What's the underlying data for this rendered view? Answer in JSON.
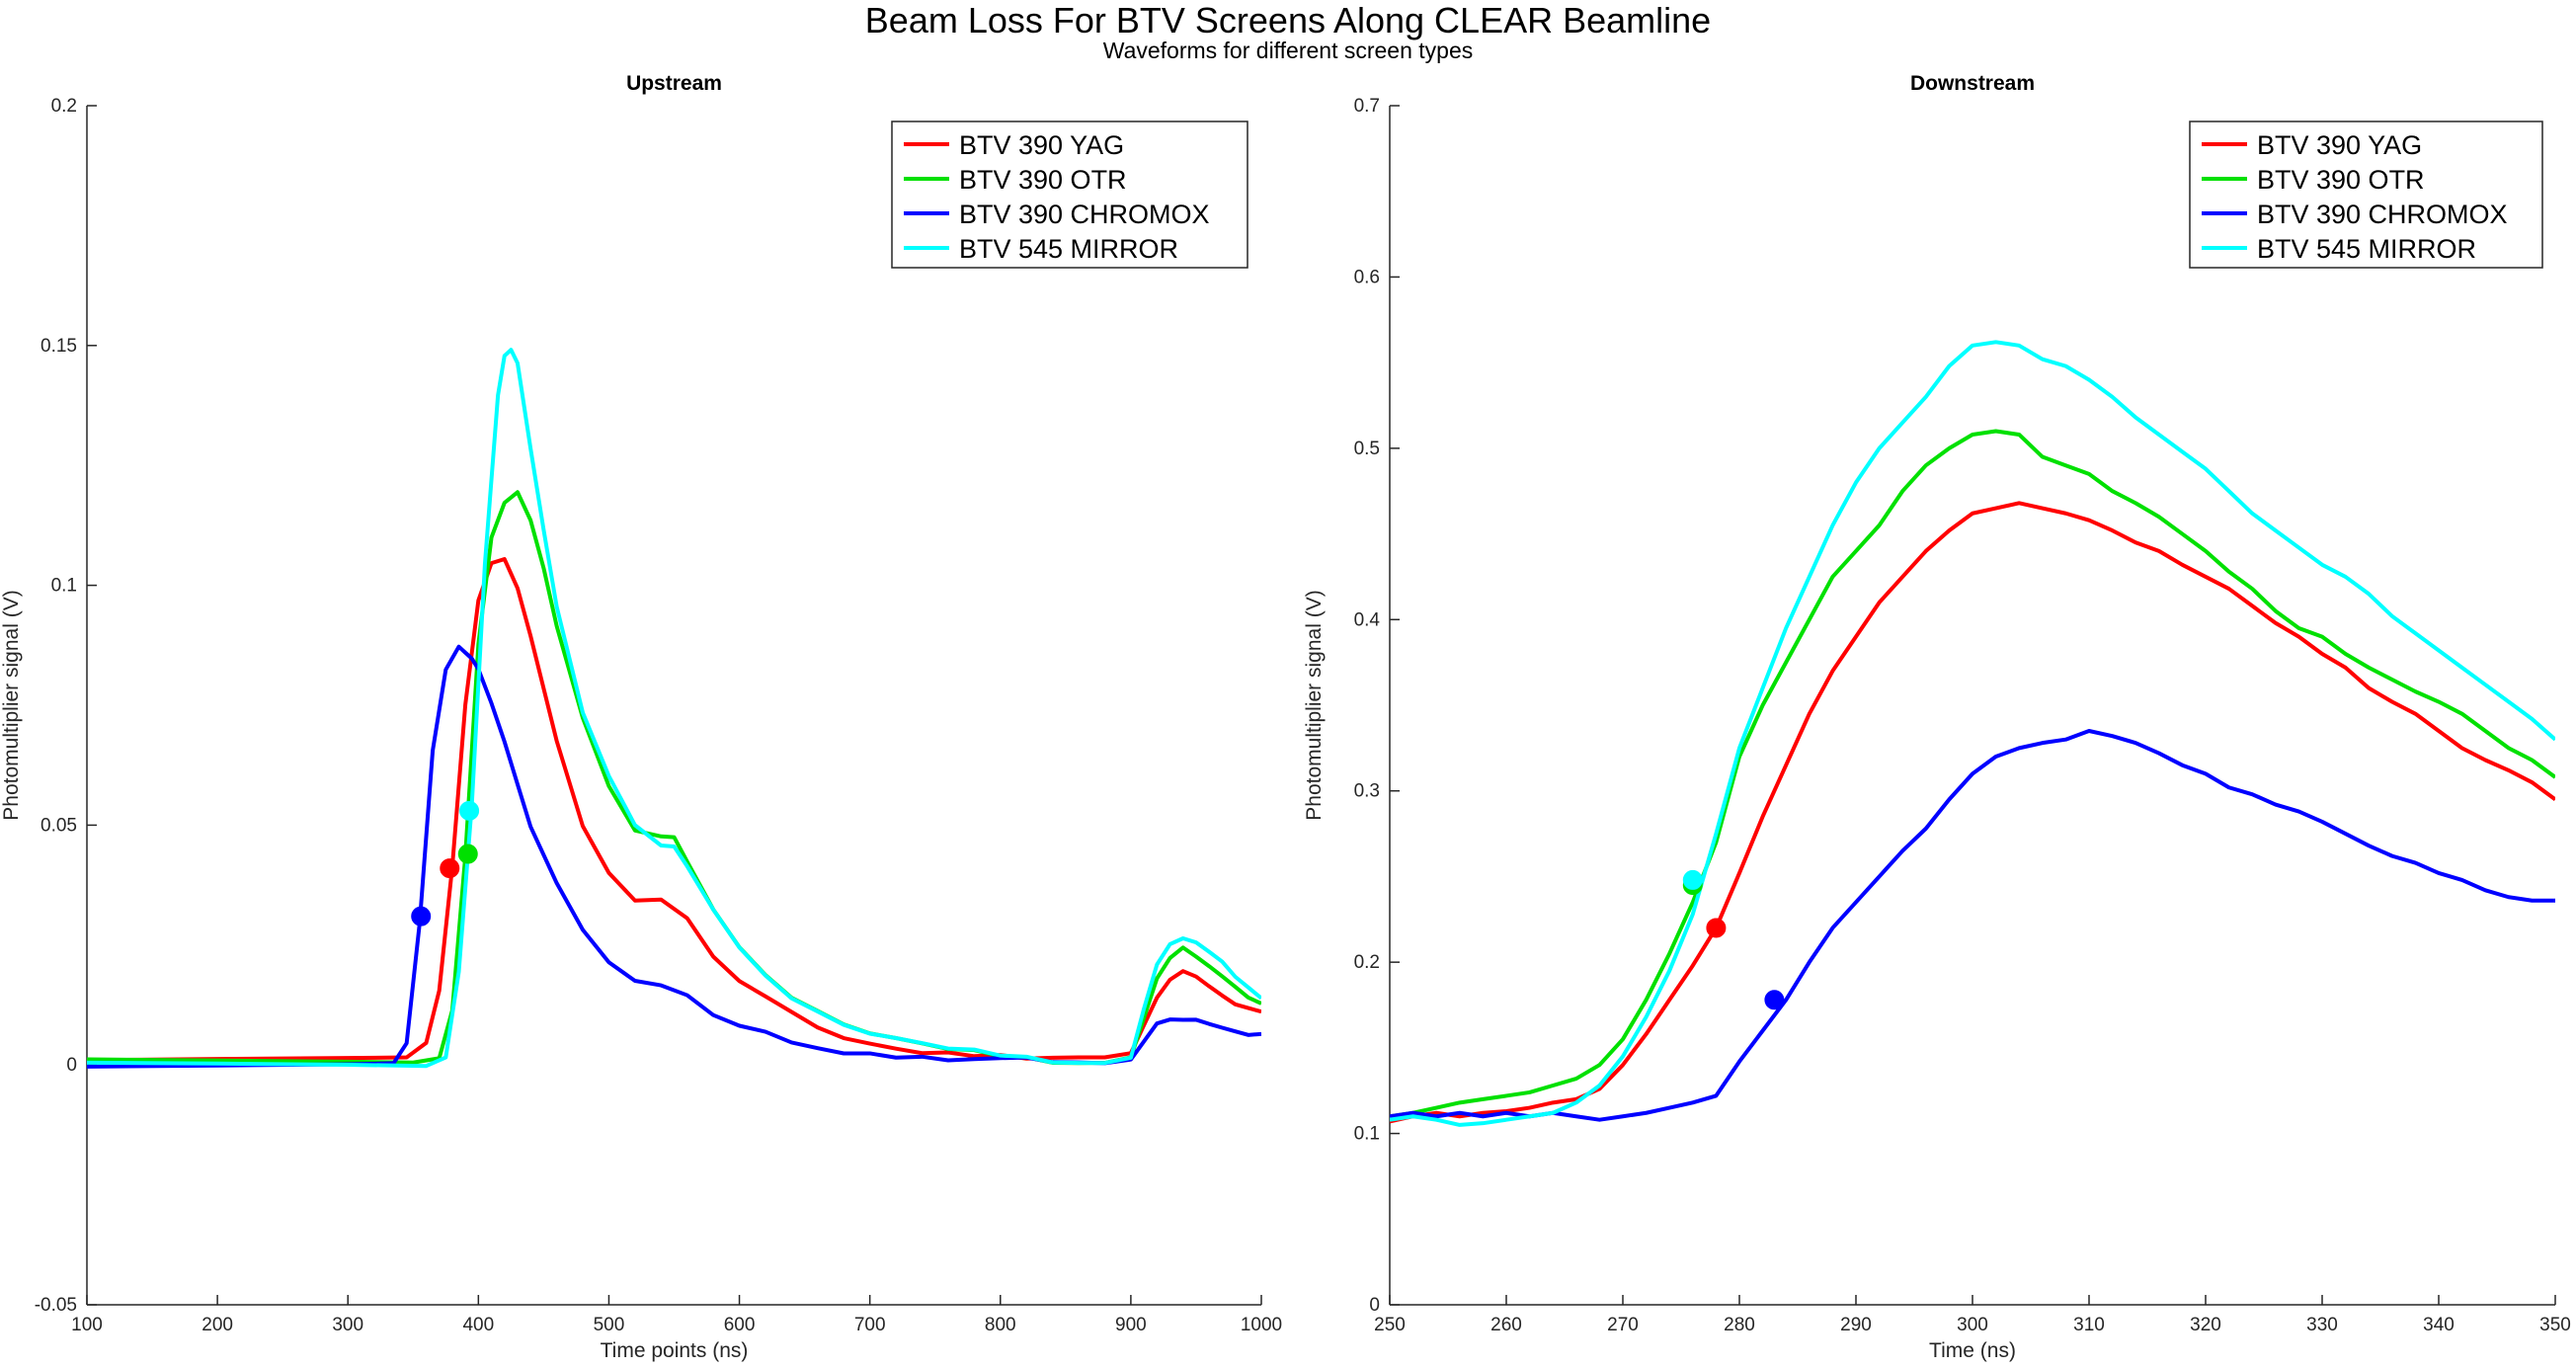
{
  "figure": {
    "title": "Beam Loss For BTV Screens Along CLEAR Beamline",
    "subtitle": "Waveforms for different screen types"
  },
  "chart_data": [
    {
      "type": "line",
      "title": "Upstream",
      "xlabel": "Time points (ns)",
      "ylabel": "Photomultiplier signal (V)",
      "xlim": [
        100,
        1000
      ],
      "ylim": [
        -0.05,
        0.2
      ],
      "xticks": [
        100,
        200,
        300,
        400,
        500,
        600,
        700,
        800,
        900,
        1000
      ],
      "yticks": [
        -0.05,
        0,
        0.05,
        0.1,
        0.15,
        0.2
      ],
      "legend_position": "top-right",
      "series": [
        {
          "name": "BTV 390 YAG",
          "color": "#ff0000",
          "x": [
            100,
            200,
            300,
            345,
            360,
            370,
            380,
            390,
            400,
            410,
            420,
            430,
            440,
            460,
            480,
            500,
            520,
            540,
            560,
            580,
            600,
            620,
            640,
            660,
            680,
            700,
            720,
            740,
            760,
            780,
            800,
            820,
            840,
            860,
            880,
            900,
            910,
            920,
            930,
            940,
            950,
            960,
            970,
            980,
            990,
            1000
          ],
          "y": [
            0.001,
            0.001,
            0.001,
            0.001,
            0.004,
            0.015,
            0.041,
            0.075,
            0.097,
            0.105,
            0.106,
            0.1,
            0.09,
            0.068,
            0.05,
            0.04,
            0.034,
            0.034,
            0.03,
            0.022,
            0.017,
            0.014,
            0.011,
            0.008,
            0.006,
            0.005,
            0.004,
            0.003,
            0.003,
            0.002,
            0.002,
            0.001,
            0.001,
            0.001,
            0.001,
            0.002,
            0.008,
            0.014,
            0.018,
            0.02,
            0.019,
            0.017,
            0.015,
            0.013,
            0.012,
            0.011
          ],
          "marker": {
            "x": 378,
            "y": 0.041
          }
        },
        {
          "name": "BTV 390 OTR",
          "color": "#00e000",
          "x": [
            100,
            200,
            300,
            350,
            370,
            380,
            390,
            400,
            410,
            420,
            430,
            440,
            450,
            460,
            480,
            500,
            520,
            540,
            550,
            560,
            580,
            600,
            620,
            640,
            660,
            680,
            700,
            720,
            740,
            760,
            780,
            800,
            820,
            840,
            860,
            880,
            900,
            910,
            920,
            930,
            940,
            950,
            960,
            970,
            980,
            990,
            1000
          ],
          "y": [
            0.001,
            0.001,
            0.001,
            0.001,
            0.002,
            0.012,
            0.044,
            0.088,
            0.11,
            0.117,
            0.119,
            0.113,
            0.103,
            0.091,
            0.072,
            0.058,
            0.049,
            0.048,
            0.048,
            0.043,
            0.033,
            0.025,
            0.019,
            0.014,
            0.011,
            0.008,
            0.006,
            0.005,
            0.004,
            0.003,
            0.003,
            0.002,
            0.002,
            0.001,
            0.001,
            0.001,
            0.002,
            0.01,
            0.018,
            0.022,
            0.024,
            0.022,
            0.02,
            0.018,
            0.016,
            0.014,
            0.013
          ],
          "marker": {
            "x": 392,
            "y": 0.044
          }
        },
        {
          "name": "BTV 390 CHROMOX",
          "color": "#0000ff",
          "x": [
            100,
            200,
            300,
            335,
            345,
            355,
            365,
            375,
            385,
            390,
            395,
            400,
            410,
            420,
            430,
            440,
            460,
            480,
            500,
            520,
            540,
            560,
            580,
            600,
            620,
            640,
            660,
            680,
            700,
            720,
            740,
            760,
            780,
            800,
            820,
            840,
            860,
            880,
            900,
            910,
            920,
            930,
            940,
            950,
            960,
            970,
            980,
            990,
            1000
          ],
          "y": [
            0.0,
            0.0,
            0.0,
            0.0,
            0.004,
            0.029,
            0.065,
            0.082,
            0.087,
            0.086,
            0.085,
            0.083,
            0.076,
            0.068,
            0.059,
            0.05,
            0.038,
            0.028,
            0.021,
            0.017,
            0.016,
            0.014,
            0.01,
            0.008,
            0.007,
            0.005,
            0.004,
            0.003,
            0.003,
            0.002,
            0.002,
            0.001,
            0.001,
            0.001,
            0.001,
            0.0,
            0.0,
            0.0,
            0.001,
            0.005,
            0.009,
            0.01,
            0.01,
            0.01,
            0.009,
            0.008,
            0.007,
            0.006,
            0.006
          ],
          "marker": {
            "x": 356,
            "y": 0.031
          }
        },
        {
          "name": "BTV 545 MIRROR",
          "color": "#00ffff",
          "x": [
            100,
            200,
            300,
            360,
            375,
            385,
            395,
            405,
            415,
            420,
            425,
            430,
            440,
            450,
            460,
            480,
            500,
            520,
            540,
            550,
            560,
            580,
            600,
            620,
            640,
            660,
            680,
            700,
            720,
            740,
            760,
            780,
            800,
            820,
            840,
            860,
            880,
            900,
            910,
            920,
            930,
            940,
            950,
            960,
            970,
            980,
            990,
            1000
          ],
          "y": [
            0.0,
            0.0,
            0.0,
            0.0,
            0.002,
            0.02,
            0.055,
            0.105,
            0.14,
            0.148,
            0.149,
            0.146,
            0.128,
            0.111,
            0.095,
            0.073,
            0.06,
            0.05,
            0.046,
            0.046,
            0.042,
            0.033,
            0.025,
            0.019,
            0.014,
            0.011,
            0.008,
            0.006,
            0.005,
            0.004,
            0.003,
            0.003,
            0.002,
            0.002,
            0.001,
            0.001,
            0.001,
            0.002,
            0.012,
            0.021,
            0.025,
            0.026,
            0.025,
            0.023,
            0.021,
            0.018,
            0.016,
            0.014
          ],
          "marker": {
            "x": 393,
            "y": 0.053
          }
        }
      ]
    },
    {
      "type": "line",
      "title": "Downstream",
      "xlabel": "Time (ns)",
      "ylabel": "Photomultiplier signal (V)",
      "xlim": [
        250,
        350
      ],
      "ylim": [
        0,
        0.7
      ],
      "xticks": [
        250,
        260,
        270,
        280,
        290,
        300,
        310,
        320,
        330,
        340,
        350
      ],
      "yticks": [
        0,
        0.1,
        0.2,
        0.3,
        0.4,
        0.5,
        0.6,
        0.7
      ],
      "legend_position": "top-right",
      "series": [
        {
          "name": "BTV 390 YAG",
          "color": "#ff0000",
          "x": [
            250,
            252,
            254,
            256,
            258,
            260,
            262,
            264,
            266,
            268,
            270,
            272,
            274,
            276,
            278,
            280,
            282,
            284,
            286,
            288,
            290,
            292,
            294,
            296,
            298,
            300,
            302,
            304,
            306,
            308,
            310,
            312,
            314,
            316,
            318,
            320,
            322,
            324,
            326,
            328,
            330,
            332,
            334,
            336,
            338,
            340,
            342,
            344,
            346,
            348,
            350
          ],
          "y": [
            0.107,
            0.11,
            0.112,
            0.11,
            0.112,
            0.113,
            0.115,
            0.118,
            0.12,
            0.126,
            0.14,
            0.158,
            0.178,
            0.198,
            0.22,
            0.252,
            0.285,
            0.315,
            0.345,
            0.37,
            0.39,
            0.41,
            0.425,
            0.44,
            0.452,
            0.462,
            0.465,
            0.468,
            0.465,
            0.462,
            0.458,
            0.452,
            0.445,
            0.44,
            0.432,
            0.425,
            0.418,
            0.408,
            0.398,
            0.39,
            0.38,
            0.372,
            0.36,
            0.352,
            0.345,
            0.335,
            0.325,
            0.318,
            0.312,
            0.305,
            0.295
          ],
          "marker": {
            "x": 278,
            "y": 0.22
          }
        },
        {
          "name": "BTV 390 OTR",
          "color": "#00e000",
          "x": [
            250,
            252,
            254,
            256,
            258,
            260,
            262,
            264,
            266,
            268,
            270,
            272,
            274,
            276,
            278,
            280,
            282,
            284,
            286,
            288,
            290,
            292,
            294,
            296,
            298,
            300,
            302,
            304,
            306,
            308,
            310,
            312,
            314,
            316,
            318,
            320,
            322,
            324,
            326,
            328,
            330,
            332,
            334,
            336,
            338,
            340,
            342,
            344,
            346,
            348,
            350
          ],
          "y": [
            0.11,
            0.112,
            0.115,
            0.118,
            0.12,
            0.122,
            0.124,
            0.128,
            0.132,
            0.14,
            0.155,
            0.178,
            0.205,
            0.235,
            0.27,
            0.32,
            0.35,
            0.375,
            0.4,
            0.425,
            0.44,
            0.455,
            0.475,
            0.49,
            0.5,
            0.508,
            0.51,
            0.508,
            0.495,
            0.49,
            0.485,
            0.475,
            0.468,
            0.46,
            0.45,
            0.44,
            0.428,
            0.418,
            0.405,
            0.395,
            0.39,
            0.38,
            0.372,
            0.365,
            0.358,
            0.352,
            0.345,
            0.335,
            0.325,
            0.318,
            0.308
          ],
          "marker": {
            "x": 276,
            "y": 0.245
          }
        },
        {
          "name": "BTV 390 CHROMOX",
          "color": "#0000ff",
          "x": [
            250,
            252,
            254,
            256,
            258,
            260,
            262,
            264,
            266,
            268,
            270,
            272,
            274,
            276,
            278,
            280,
            282,
            284,
            286,
            288,
            290,
            292,
            294,
            296,
            298,
            300,
            302,
            304,
            306,
            308,
            310,
            312,
            314,
            316,
            318,
            320,
            322,
            324,
            326,
            328,
            330,
            332,
            334,
            336,
            338,
            340,
            342,
            344,
            346,
            348,
            350
          ],
          "y": [
            0.11,
            0.112,
            0.11,
            0.112,
            0.11,
            0.112,
            0.11,
            0.112,
            0.11,
            0.108,
            0.11,
            0.112,
            0.115,
            0.118,
            0.122,
            0.142,
            0.16,
            0.178,
            0.2,
            0.22,
            0.235,
            0.25,
            0.265,
            0.278,
            0.295,
            0.31,
            0.32,
            0.325,
            0.328,
            0.33,
            0.335,
            0.332,
            0.328,
            0.322,
            0.315,
            0.31,
            0.302,
            0.298,
            0.292,
            0.288,
            0.282,
            0.275,
            0.268,
            0.262,
            0.258,
            0.252,
            0.248,
            0.242,
            0.238,
            0.236,
            0.236
          ],
          "marker": {
            "x": 283,
            "y": 0.178
          }
        },
        {
          "name": "BTV 545 MIRROR",
          "color": "#00ffff",
          "x": [
            250,
            252,
            254,
            256,
            258,
            260,
            262,
            264,
            266,
            268,
            270,
            272,
            274,
            276,
            278,
            280,
            282,
            284,
            286,
            288,
            290,
            292,
            294,
            296,
            298,
            300,
            302,
            304,
            306,
            308,
            310,
            312,
            314,
            316,
            318,
            320,
            322,
            324,
            326,
            328,
            330,
            332,
            334,
            336,
            338,
            340,
            342,
            344,
            346,
            348,
            350
          ],
          "y": [
            0.108,
            0.11,
            0.108,
            0.105,
            0.106,
            0.108,
            0.11,
            0.112,
            0.118,
            0.128,
            0.145,
            0.168,
            0.195,
            0.228,
            0.275,
            0.325,
            0.36,
            0.395,
            0.425,
            0.455,
            0.48,
            0.5,
            0.515,
            0.53,
            0.548,
            0.56,
            0.562,
            0.56,
            0.552,
            0.548,
            0.54,
            0.53,
            0.518,
            0.508,
            0.498,
            0.488,
            0.475,
            0.462,
            0.452,
            0.442,
            0.432,
            0.425,
            0.415,
            0.402,
            0.392,
            0.382,
            0.372,
            0.362,
            0.352,
            0.342,
            0.33
          ],
          "marker": {
            "x": 276,
            "y": 0.248
          }
        }
      ]
    }
  ]
}
